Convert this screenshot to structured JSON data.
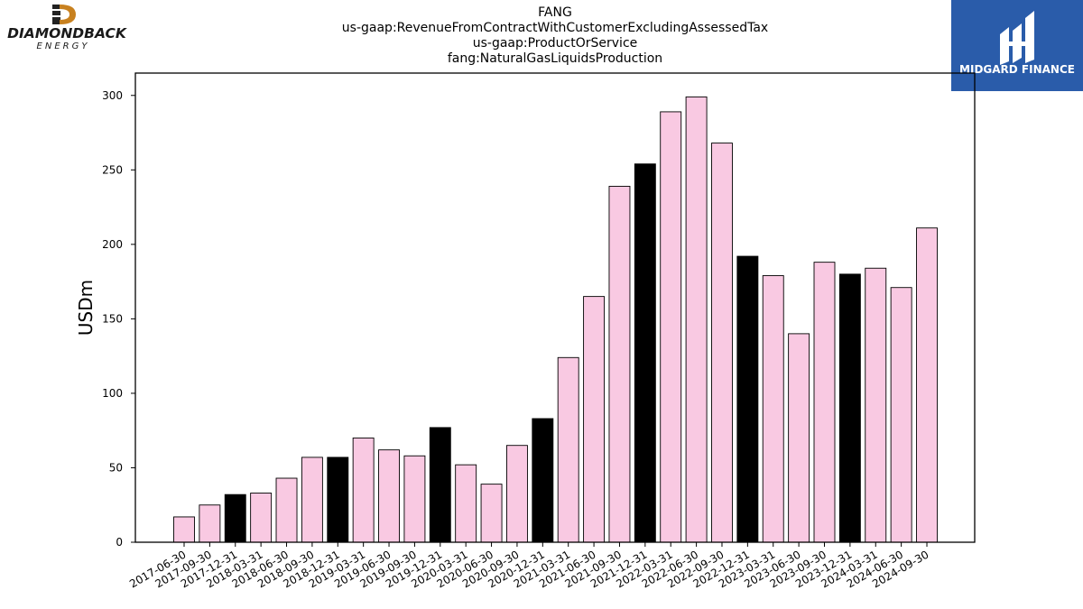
{
  "header": {
    "title_lines": [
      "FANG",
      "us-gaap:RevenueFromContractWithCustomerExcludingAssessedTax",
      "us-gaap:ProductOrService",
      "fang:NaturalGasLiquidsProduction"
    ]
  },
  "logos": {
    "left_text_1": "DIAMONDBACK",
    "left_text_2": "ENERGY",
    "right_text": "MIDGARD FINANCE"
  },
  "colors": {
    "quarter_bar": "#f9c9e2",
    "year_end_bar": "#000000",
    "bar_edge": "#000000",
    "brand_blue": "#2a5caa",
    "brand_orange": "#c8811f"
  },
  "chart_data": {
    "type": "bar",
    "ylabel": "USDm",
    "ylim": [
      0,
      315
    ],
    "yticks": [
      0,
      50,
      100,
      150,
      200,
      250,
      300
    ],
    "grid": false,
    "categories": [
      "2017-06-30",
      "2017-09-30",
      "2017-12-31",
      "2018-03-31",
      "2018-06-30",
      "2018-09-30",
      "2018-12-31",
      "2019-03-31",
      "2019-06-30",
      "2019-09-30",
      "2019-12-31",
      "2020-03-31",
      "2020-06-30",
      "2020-09-30",
      "2020-12-31",
      "2021-03-31",
      "2021-06-30",
      "2021-09-30",
      "2021-12-31",
      "2022-03-31",
      "2022-06-30",
      "2022-09-30",
      "2022-12-31",
      "2023-03-31",
      "2023-06-30",
      "2023-09-30",
      "2023-12-31",
      "2024-03-31",
      "2024-06-30",
      "2024-09-30"
    ],
    "values": [
      17,
      25,
      32,
      33,
      43,
      57,
      57,
      70,
      62,
      58,
      77,
      52,
      39,
      65,
      83,
      124,
      165,
      239,
      254,
      289,
      299,
      268,
      192,
      179,
      140,
      188,
      180,
      184,
      171,
      211
    ]
  }
}
